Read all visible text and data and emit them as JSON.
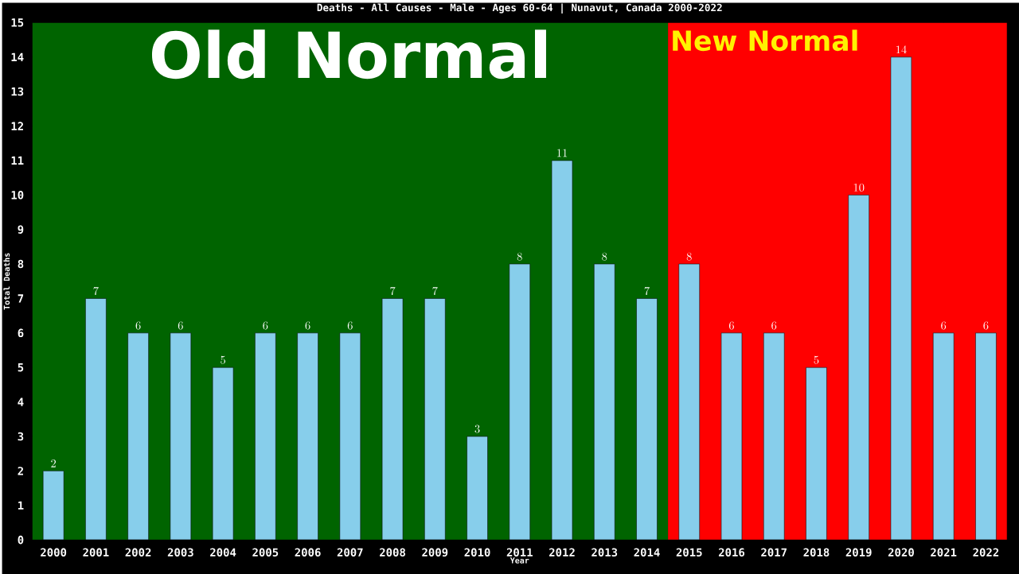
{
  "chart_data": {
    "type": "bar",
    "title": "Deaths - All Causes - Male - Ages 60-64 | Nunavut, Canada 2000-2022",
    "xlabel": "Year",
    "ylabel": "Total Deaths",
    "categories": [
      "2000",
      "2001",
      "2002",
      "2003",
      "2004",
      "2005",
      "2006",
      "2007",
      "2008",
      "2009",
      "2010",
      "2011",
      "2012",
      "2013",
      "2014",
      "2015",
      "2016",
      "2017",
      "2018",
      "2019",
      "2020",
      "2021",
      "2022"
    ],
    "values": [
      2,
      7,
      6,
      6,
      5,
      6,
      6,
      6,
      7,
      7,
      3,
      8,
      11,
      8,
      7,
      8,
      6,
      6,
      5,
      10,
      14,
      6,
      6
    ],
    "color": "#87ceeb",
    "ylim": [
      0,
      15
    ],
    "yticks": [
      0,
      1,
      2,
      3,
      4,
      5,
      6,
      7,
      8,
      9,
      10,
      11,
      12,
      13,
      14,
      15
    ],
    "data_labels": true,
    "grid": false,
    "bands": [
      {
        "axis": "x",
        "from": "2000",
        "to": "2014",
        "label": "Old Normal",
        "color": "#006400"
      },
      {
        "axis": "x",
        "from": "2015",
        "to": "2022",
        "label": "New Normal",
        "color": "#ff0000"
      }
    ]
  }
}
